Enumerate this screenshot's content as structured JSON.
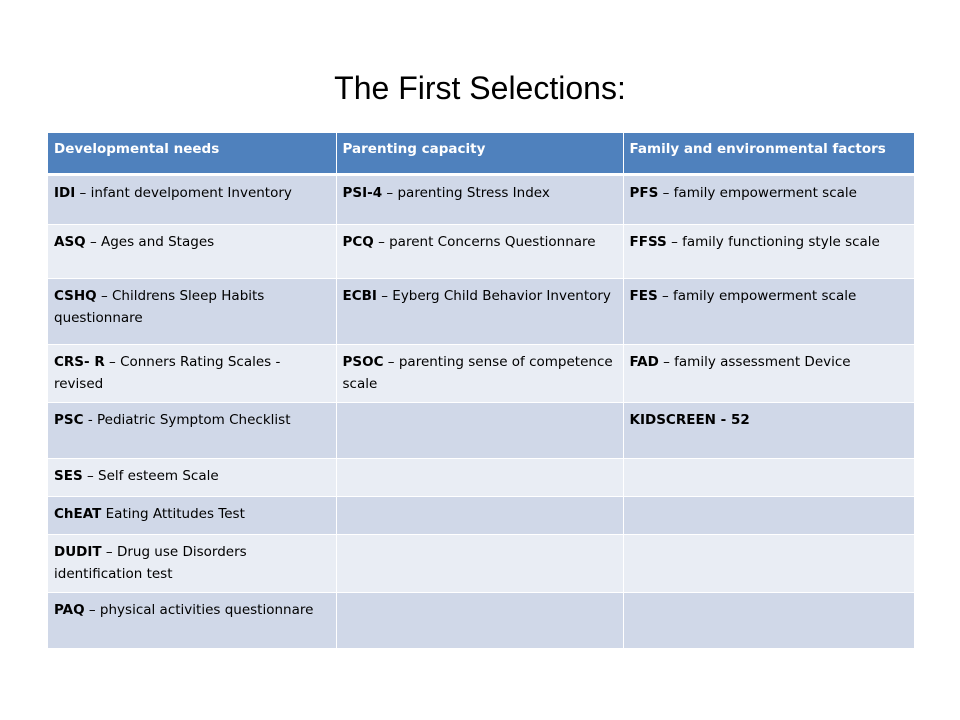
{
  "title": "The First Selections:",
  "headers": [
    "Developmental needs",
    "Parenting capacity",
    "Family and environmental factors"
  ],
  "rows": [
    [
      {
        "abbr": "IDI",
        "rest": " – infant develpoment Inventory"
      },
      {
        "abbr": "PSI-4",
        "rest": " – parenting Stress Index"
      },
      {
        "abbr": "PFS",
        "rest": " – family empowerment scale"
      }
    ],
    [
      {
        "abbr": "ASQ",
        "rest": " – Ages and Stages"
      },
      {
        "abbr": "PCQ",
        "rest": " – parent Concerns Questionnare"
      },
      {
        "abbr": "FFSS",
        "rest": " – family functioning style scale"
      }
    ],
    [
      {
        "abbr": "CSHQ",
        "rest": " – Childrens Sleep Habits questionnare"
      },
      {
        "abbr": "ECBI",
        "rest": " – Eyberg Child Behavior Inventory"
      },
      {
        "abbr": "FES",
        "rest": " – family empowerment scale"
      }
    ],
    [
      {
        "abbr": "CRS- R",
        "rest": " – Conners Rating Scales - revised"
      },
      {
        "abbr": "PSOC",
        "rest": " – parenting sense of competence scale"
      },
      {
        "abbr": "FAD",
        "rest": " – family assessment Device"
      }
    ],
    [
      {
        "abbr": "PSC",
        "rest": "  - Pediatric Symptom Checklist"
      },
      {
        "abbr": "",
        "rest": ""
      },
      {
        "abbr": "KIDSCREEN - 52",
        "rest": ""
      }
    ],
    [
      {
        "abbr": "SES",
        "rest": " – Self esteem Scale"
      },
      {
        "abbr": "",
        "rest": ""
      },
      {
        "abbr": "",
        "rest": ""
      }
    ],
    [
      {
        "abbr": "ChEAT",
        "rest": " Eating Attitudes Test"
      },
      {
        "abbr": "",
        "rest": ""
      },
      {
        "abbr": "",
        "rest": ""
      }
    ],
    [
      {
        "abbr": "DUDIT",
        "rest": " – Drug use Disorders identification test"
      },
      {
        "abbr": "",
        "rest": ""
      },
      {
        "abbr": "",
        "rest": ""
      }
    ],
    [
      {
        "abbr": "PAQ",
        "rest": " – physical activities questionnare"
      },
      {
        "abbr": "",
        "rest": ""
      },
      {
        "abbr": "",
        "rest": ""
      }
    ]
  ],
  "colors": {
    "header_bg": "#4f81bd",
    "row_odd": "#d0d8e8",
    "row_even": "#e9edf4"
  }
}
